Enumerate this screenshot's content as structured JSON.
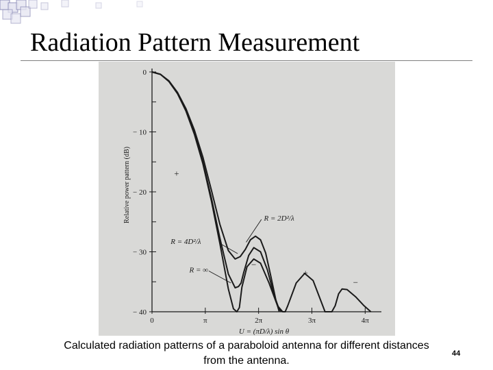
{
  "slide": {
    "title": "Radiation Pattern Measurement",
    "caption_line1": "Calculated radiation patterns of a paraboloid antenna for  different distances",
    "caption_line2": "from the antenna.",
    "page_number": "44"
  },
  "colors": {
    "panel_background": "#d9d9d7",
    "ink": "#1a1a1a",
    "decor_square_outline": "#8e8eb8",
    "decor_square_fill": "#e6e6f2"
  },
  "chart_data": {
    "type": "line",
    "ylabel": "Relative power pattern (dB)",
    "xlabel": "U = (πD/λ) sin θ",
    "x_ticks": [
      0,
      3.1416,
      6.2832,
      9.4248,
      12.5664
    ],
    "x_tick_labels": [
      "0",
      "π",
      "2π",
      "3π",
      "4π"
    ],
    "y_ticks": [
      0,
      -10,
      -20,
      -30,
      -40
    ],
    "y_tick_labels": [
      "0",
      "− 10",
      "− 20",
      "− 30",
      "− 40"
    ],
    "xlim": [
      0,
      13.2
    ],
    "ylim": [
      -40,
      0
    ],
    "grid": false,
    "series": [
      {
        "name": "R = ∞",
        "x": [
          0,
          0.5,
          1.0,
          1.5,
          2.0,
          2.5,
          3.0,
          3.5,
          4.0,
          4.5,
          4.8,
          5.0,
          5.15,
          5.3,
          5.6,
          6.0,
          6.4,
          6.9,
          7.4,
          7.7,
          7.85,
          8.0,
          8.5,
          9.0,
          9.5,
          10.2,
          10.6,
          10.8,
          11.0,
          11.2,
          11.5,
          12.0,
          12.5,
          12.9
        ],
        "y": [
          0,
          -0.4,
          -1.6,
          -3.6,
          -6.5,
          -10.4,
          -15.3,
          -21.5,
          -28.6,
          -36.2,
          -39.5,
          -40,
          -39.3,
          -35.9,
          -32.5,
          -31.2,
          -31.9,
          -35.2,
          -39.0,
          -40,
          -40,
          -39.0,
          -35.2,
          -33.6,
          -34.8,
          -40,
          -40,
          -39.0,
          -37.0,
          -36.2,
          -36.3,
          -37.5,
          -39.0,
          -40
        ]
      },
      {
        "name": "R = 4D²/λ",
        "x": [
          0,
          0.5,
          1.0,
          1.5,
          2.0,
          2.5,
          3.0,
          3.5,
          4.0,
          4.5,
          4.9,
          5.1,
          5.25,
          5.4,
          5.7,
          6.0,
          6.4,
          6.8,
          7.2,
          7.5,
          7.65
        ],
        "y": [
          0,
          -0.4,
          -1.6,
          -3.6,
          -6.4,
          -10.2,
          -15.0,
          -21.0,
          -27.7,
          -33.7,
          -36.0,
          -35.8,
          -35.2,
          -33.5,
          -30.6,
          -29.3,
          -30.0,
          -33.0,
          -37.3,
          -39.6,
          -40
        ]
      },
      {
        "name": "R = 2D²/λ",
        "x": [
          0,
          0.5,
          1.0,
          1.5,
          2.0,
          2.5,
          3.0,
          3.5,
          4.0,
          4.5,
          4.9,
          5.2,
          5.5,
          5.8,
          6.1,
          6.4,
          6.7,
          7.0,
          7.3,
          7.5
        ],
        "y": [
          0,
          -0.4,
          -1.5,
          -3.4,
          -6.1,
          -9.7,
          -14.2,
          -19.7,
          -25.4,
          -29.8,
          -31.2,
          -30.8,
          -29.6,
          -28.0,
          -27.4,
          -28.0,
          -30.2,
          -34.0,
          -38.0,
          -40
        ]
      }
    ],
    "annotations": [
      {
        "text": "R = 2D²/λ",
        "x": 6.6,
        "y": -24.8
      },
      {
        "text": "R = 4D²/λ",
        "x": 1.1,
        "y": -28.7
      },
      {
        "text": "R = ∞",
        "x": 2.2,
        "y": -33.4
      },
      {
        "text": "+",
        "x": 1.45,
        "y": -17.4
      },
      {
        "text": "−",
        "x": 6.0,
        "y": -32.6
      },
      {
        "text": "+",
        "x": 9.05,
        "y": -34.0
      },
      {
        "text": "−",
        "x": 12.0,
        "y": -35.6
      }
    ]
  }
}
